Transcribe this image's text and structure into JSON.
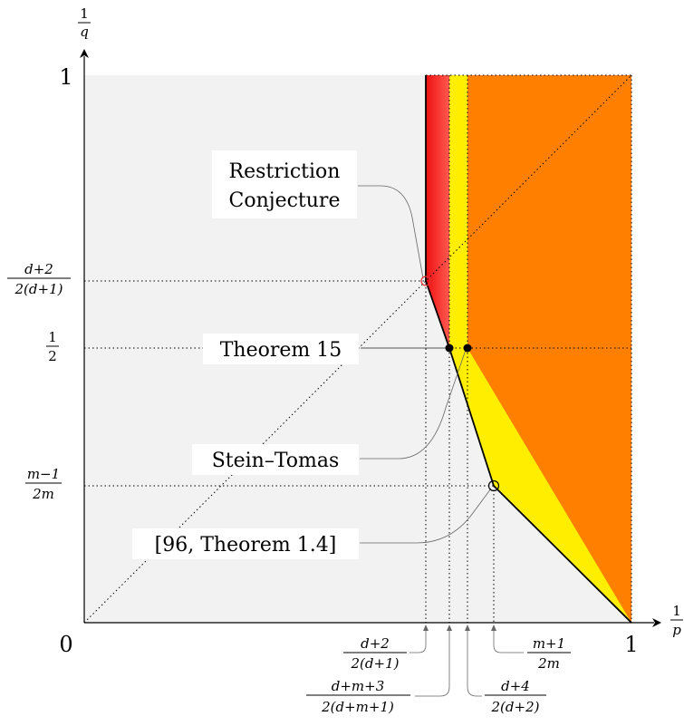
{
  "axes": {
    "y_axis_label_num": "1",
    "y_axis_label_den": "q",
    "x_axis_label_num": "1",
    "x_axis_label_den": "p",
    "origin_label": "0",
    "x_one_label": "1",
    "y_one_label": "1"
  },
  "y_ticks": {
    "restriction": {
      "num": "d+2",
      "den": "2(d+1)"
    },
    "half": {
      "num": "1",
      "den": "2"
    },
    "m": {
      "num": "m−1",
      "den": "2m"
    }
  },
  "x_ticks": {
    "restriction": {
      "num": "d+2",
      "den": "2(d+1)"
    },
    "dm": {
      "num": "d+m+3",
      "den": "2(d+m+1)"
    },
    "d4": {
      "num": "d+4",
      "den": "2(d+2)"
    },
    "m": {
      "num": "m+1",
      "den": "2m"
    }
  },
  "callouts": {
    "restriction_line1": "Restriction",
    "restriction_line2": "Conjecture",
    "theorem15": "Theorem 15",
    "stein_tomas": "Stein–Tomas",
    "theorem14": "[96, Theorem 1.4]"
  },
  "colors": {
    "background_region": "#f2f2f2",
    "red_region": "#ff2020",
    "yellow_region": "#ffee00",
    "orange_region": "#ff8000"
  }
}
